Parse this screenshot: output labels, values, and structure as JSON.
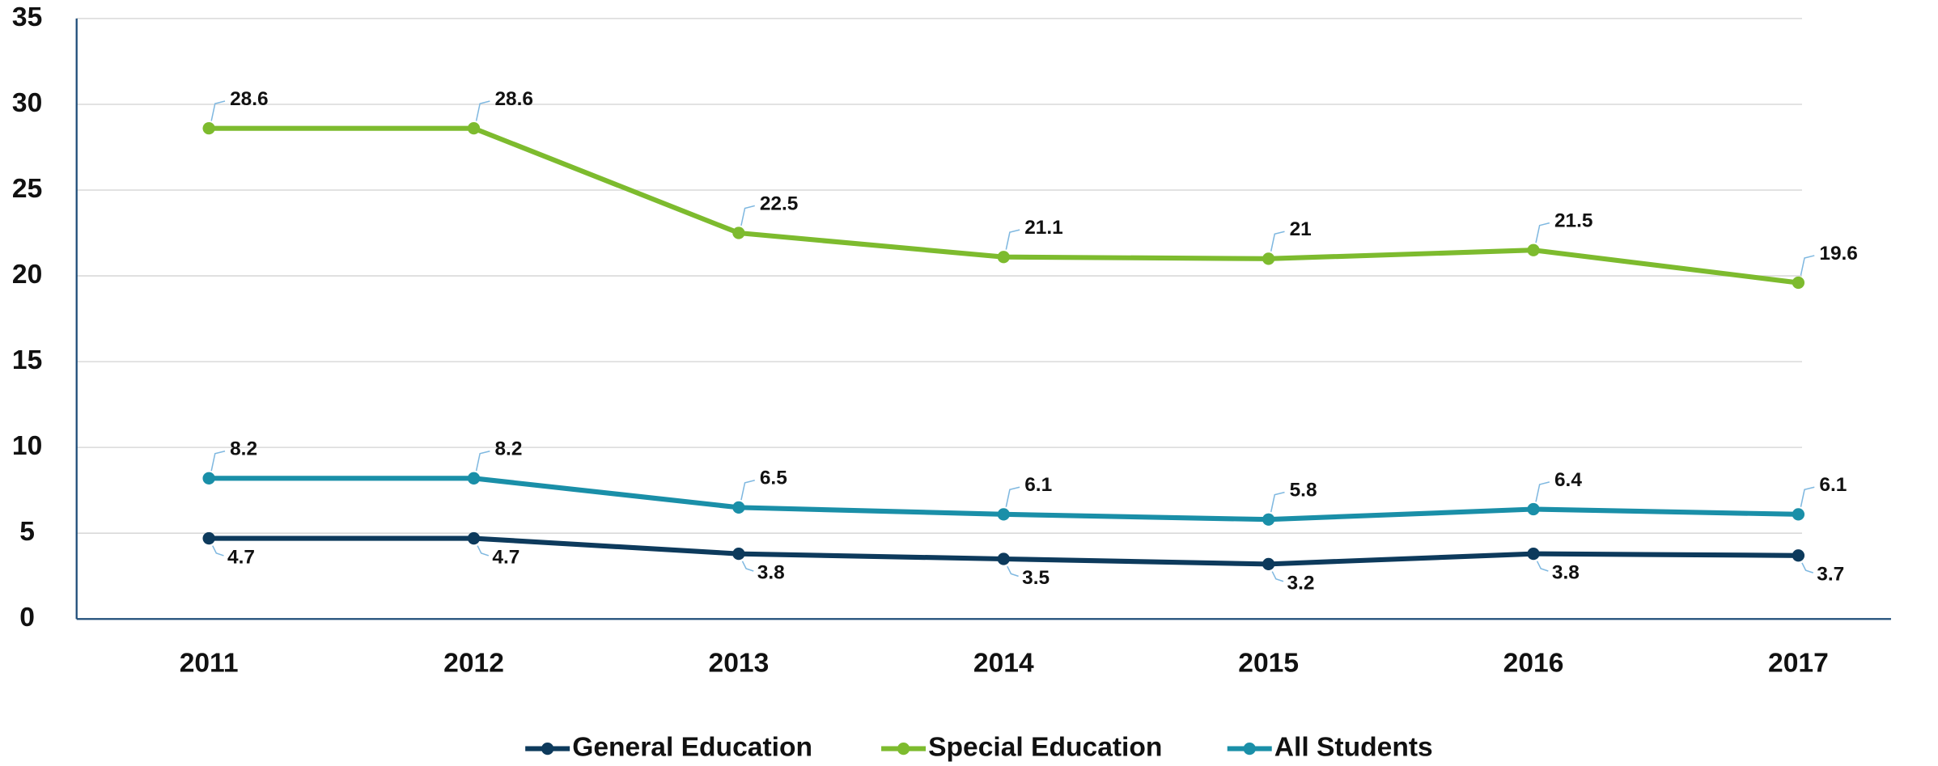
{
  "chart_data": {
    "type": "line",
    "categories": [
      "2011",
      "2012",
      "2013",
      "2014",
      "2015",
      "2016",
      "2017"
    ],
    "series": [
      {
        "name": "General Education",
        "color": "#0d3a5c",
        "values": [
          4.7,
          4.7,
          3.8,
          3.5,
          3.2,
          3.8,
          3.7
        ]
      },
      {
        "name": "Special Education",
        "color": "#7dbb2e",
        "values": [
          28.6,
          28.6,
          22.5,
          21.1,
          21,
          21.5,
          19.6
        ]
      },
      {
        "name": "All Students",
        "color": "#1a8fa8",
        "values": [
          8.2,
          8.2,
          6.5,
          6.1,
          5.8,
          6.4,
          6.1
        ]
      }
    ],
    "ylim": [
      0,
      35
    ],
    "yticks": [
      0,
      5,
      10,
      15,
      20,
      25,
      30,
      35
    ],
    "grid": true,
    "legend": "bottom"
  }
}
